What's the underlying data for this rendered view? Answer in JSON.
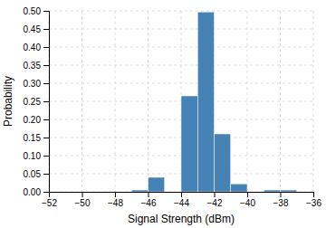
{
  "chart_data": {
    "type": "histogram",
    "xlabel": "Signal Strength (dBm)",
    "ylabel": "Probability",
    "bins": [
      -52,
      -51,
      -50,
      -49,
      -48,
      -47,
      -46,
      -45,
      -44,
      -43,
      -42,
      -41,
      -40,
      -39,
      -38,
      -37,
      -36
    ],
    "values": [
      0,
      0,
      0,
      0,
      0,
      0.005,
      0.04,
      0,
      0.265,
      0.497,
      0.16,
      0.022,
      0,
      0.005,
      0.005,
      0
    ],
    "xlim": [
      -52,
      -36
    ],
    "ylim": [
      0,
      0.5
    ],
    "xticks": [
      {
        "value": -52,
        "label": "−52"
      },
      {
        "value": -50,
        "label": "−50"
      },
      {
        "value": -48,
        "label": "−48"
      },
      {
        "value": -46,
        "label": "−46"
      },
      {
        "value": -44,
        "label": "−44"
      },
      {
        "value": -42,
        "label": "−42"
      },
      {
        "value": -40,
        "label": "−40"
      },
      {
        "value": -38,
        "label": "−38"
      },
      {
        "value": -36,
        "label": "−36"
      }
    ],
    "yticks": [
      {
        "value": 0,
        "label": "0.00"
      },
      0.05,
      {
        "value": 0.1,
        "label": "0.10"
      },
      0.15,
      {
        "value": 0.2,
        "label": "0.20"
      },
      0.25,
      {
        "value": 0.3,
        "label": "0.30"
      },
      0.35,
      {
        "value": 0.4,
        "label": "0.40"
      },
      0.45,
      {
        "value": 0.5,
        "label": "0.50"
      }
    ],
    "grid": true
  }
}
